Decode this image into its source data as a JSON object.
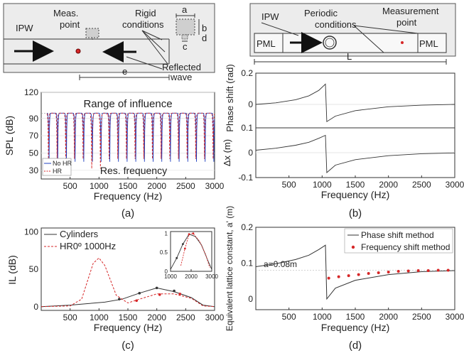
{
  "schematic_a": {
    "ipw": "IPW",
    "meas_point": [
      "Meas.",
      "point"
    ],
    "rigid": [
      "Rigid",
      "conditions"
    ],
    "reflected": [
      "Reflected",
      "wave"
    ],
    "dim_a": "a",
    "dim_b": "b",
    "dim_c": "c",
    "dim_d": "d",
    "dim_e": "e"
  },
  "schematic_b": {
    "ipw": "IPW",
    "periodic": [
      "Periodic",
      "conditions"
    ],
    "measurement": [
      "Measurement",
      "point"
    ],
    "pml_left": "PML",
    "pml_right": "PML",
    "dim_l": "L"
  },
  "panel_labels": {
    "a": "(a)",
    "b": "(b)",
    "c": "(c)",
    "d": "(d)"
  },
  "chart_data": [
    {
      "id": "a",
      "type": "line",
      "xlabel": "Frequency (Hz)",
      "ylabel": "SPL (dB)",
      "xlim": [
        0,
        3000
      ],
      "ylim": [
        20,
        120
      ],
      "xticks": [
        500,
        1000,
        1500,
        2000,
        2500,
        3000
      ],
      "yticks": [
        30,
        50,
        70,
        90,
        120
      ],
      "annotations": [
        "Range of influence",
        "Res. frequency"
      ],
      "legend": "bottom-left",
      "series": [
        {
          "name": "No HR",
          "color": "#1f3fbf",
          "style": "solid",
          "dip_spacing_hz": 150,
          "min_db": 30,
          "max_db": 96
        },
        {
          "name": "HR",
          "color": "#d62728",
          "style": "dashed",
          "dip_spacing_hz": 150,
          "min_db": 34,
          "max_db": 96
        }
      ]
    },
    {
      "id": "b1",
      "type": "line",
      "ylabel": "Phase shift (rad)",
      "xlim": [
        0,
        3000
      ],
      "ylim": [
        -0.15,
        0.2
      ],
      "yticks": [
        -0.1,
        0,
        0.1,
        0.2
      ],
      "series": [
        {
          "color": "#333333",
          "x": [
            0,
            300,
            600,
            800,
            950,
            1050,
            1070,
            1200,
            1500,
            2000,
            2500,
            3000
          ],
          "y": [
            0.0,
            0.01,
            0.03,
            0.055,
            0.09,
            0.13,
            -0.11,
            -0.075,
            -0.04,
            -0.015,
            -0.005,
            0.0
          ]
        }
      ]
    },
    {
      "id": "b2",
      "type": "line",
      "xlabel": "Frequency (Hz)",
      "ylabel": "Δx (m)",
      "xlim": [
        0,
        3000
      ],
      "ylim": [
        -0.1,
        0.1
      ],
      "xticks": [
        500,
        1000,
        1500,
        2000,
        2500,
        3000
      ],
      "yticks": [
        -0.1,
        0,
        0.1
      ],
      "series": [
        {
          "color": "#333333",
          "x": [
            0,
            300,
            600,
            800,
            950,
            1050,
            1070,
            1200,
            1500,
            2000,
            2500,
            3000
          ],
          "y": [
            0.01,
            0.018,
            0.03,
            0.042,
            0.058,
            0.07,
            -0.08,
            -0.05,
            -0.028,
            -0.012,
            -0.004,
            -0.001
          ]
        }
      ]
    },
    {
      "id": "c",
      "type": "line",
      "xlabel": "Frequency (Hz)",
      "ylabel": "IL (dB)",
      "xlim": [
        0,
        3000
      ],
      "ylim": [
        -5,
        105
      ],
      "xticks": [
        500,
        1000,
        1500,
        2000,
        2500,
        3000
      ],
      "yticks": [
        0,
        50,
        100
      ],
      "legend": "top-left",
      "series": [
        {
          "name": "Cylinders",
          "color": "#333333",
          "style": "solid",
          "x": [
            0,
            500,
            800,
            1100,
            1400,
            1700,
            2000,
            2300,
            2600,
            2800,
            3000
          ],
          "y": [
            0,
            2,
            4,
            6,
            10,
            18,
            25,
            20,
            12,
            2,
            0
          ]
        },
        {
          "name": "HR0º 1000Hz",
          "color": "#d62728",
          "style": "dashed",
          "x": [
            0,
            500,
            700,
            900,
            1000,
            1100,
            1300,
            1500,
            1700,
            2000,
            2300,
            2600,
            2800,
            3000
          ],
          "y": [
            0,
            1,
            10,
            58,
            65,
            55,
            15,
            5,
            10,
            17,
            17,
            11,
            1,
            0
          ]
        }
      ],
      "inset": {
        "xticks": [
          1000,
          2000,
          3000
        ],
        "yticks": [
          0,
          0.5,
          1
        ]
      }
    },
    {
      "id": "d",
      "type": "line",
      "xlabel": "Frequency (Hz)",
      "ylabel": "Equivalent lattice constant, a' (m)",
      "xlim": [
        0,
        3000
      ],
      "ylim": [
        -0.03,
        0.2
      ],
      "xticks": [
        500,
        1000,
        1500,
        2000,
        2500,
        3000
      ],
      "yticks": [
        0,
        0.1,
        0.2
      ],
      "annotation": "a=0.08m",
      "legend": "top-right",
      "series": [
        {
          "name": "Phase shift method",
          "color": "#333333",
          "style": "solid",
          "x": [
            0,
            300,
            600,
            800,
            950,
            1050,
            1070,
            1200,
            1500,
            2000,
            2500,
            3000
          ],
          "y": [
            0.09,
            0.098,
            0.11,
            0.122,
            0.138,
            0.15,
            0.0,
            0.03,
            0.052,
            0.068,
            0.076,
            0.079
          ]
        },
        {
          "name": "Frequency shift method",
          "color": "#d62728",
          "style": "markers",
          "x": [
            1100,
            1250,
            1400,
            1550,
            1700,
            1850,
            2000,
            2150,
            2300,
            2450,
            2600,
            2750,
            2900
          ],
          "y": [
            0.058,
            0.062,
            0.065,
            0.068,
            0.071,
            0.073,
            0.075,
            0.077,
            0.078,
            0.079,
            0.079,
            0.08,
            0.08
          ]
        }
      ]
    }
  ]
}
